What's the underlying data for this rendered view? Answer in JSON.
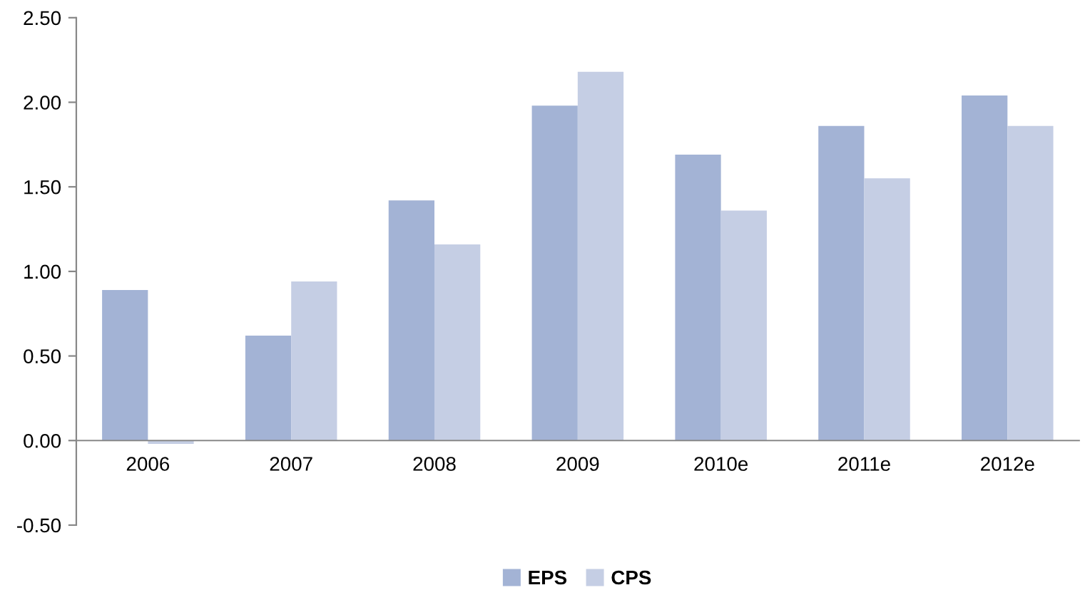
{
  "chart_data": {
    "type": "bar",
    "categories": [
      "2006",
      "2007",
      "2008",
      "2009",
      "2010e",
      "2011e",
      "2012e"
    ],
    "series": [
      {
        "name": "EPS",
        "color": "#a3b3d5",
        "values": [
          0.89,
          0.62,
          1.42,
          1.98,
          1.69,
          1.86,
          2.04
        ]
      },
      {
        "name": "CPS",
        "color": "#c5cee4",
        "values": [
          -0.02,
          0.94,
          1.16,
          2.18,
          1.36,
          1.55,
          1.86
        ]
      }
    ],
    "ylim": [
      -0.5,
      2.5
    ],
    "yticks": [
      {
        "value": -0.5,
        "label": "-0.50"
      },
      {
        "value": 0,
        "label": "0.00"
      },
      {
        "value": 0.5,
        "label": "0.50"
      },
      {
        "value": 1,
        "label": "1.00"
      },
      {
        "value": 1.5,
        "label": "1.50"
      },
      {
        "value": 2,
        "label": "2.00"
      },
      {
        "value": 2.5,
        "label": "2.50"
      }
    ],
    "grid": false,
    "legend": "bottom"
  }
}
